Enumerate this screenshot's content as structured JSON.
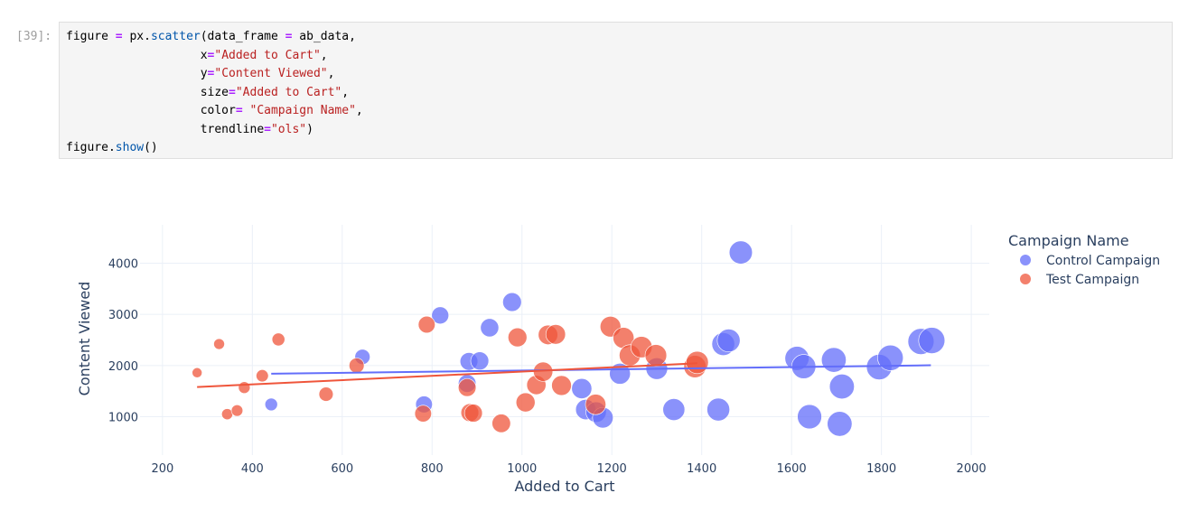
{
  "cell": {
    "prompt": "[39]:",
    "code_lines": [
      [
        [
          "t",
          "figure "
        ],
        [
          "kw",
          "="
        ],
        [
          "t",
          " px."
        ],
        [
          "fn",
          "scatter"
        ],
        [
          "t",
          "(data_frame "
        ],
        [
          "kw",
          "="
        ],
        [
          "t",
          " ab_data,"
        ]
      ],
      [
        [
          "t",
          "                   x"
        ],
        [
          "kw",
          "="
        ],
        [
          "str",
          "\"Added to Cart\""
        ],
        [
          "t",
          ","
        ]
      ],
      [
        [
          "t",
          "                   y"
        ],
        [
          "kw",
          "="
        ],
        [
          "str",
          "\"Content Viewed\""
        ],
        [
          "t",
          ","
        ]
      ],
      [
        [
          "t",
          "                   size"
        ],
        [
          "kw",
          "="
        ],
        [
          "str",
          "\"Added to Cart\""
        ],
        [
          "t",
          ","
        ]
      ],
      [
        [
          "t",
          "                   color"
        ],
        [
          "kw",
          "="
        ],
        [
          "t",
          " "
        ],
        [
          "str",
          "\"Campaign Name\""
        ],
        [
          "t",
          ","
        ]
      ],
      [
        [
          "t",
          "                   trendline"
        ],
        [
          "kw",
          "="
        ],
        [
          "str",
          "\"ols\""
        ],
        [
          "t",
          ")"
        ]
      ],
      [
        [
          "t",
          "figure."
        ],
        [
          "fn",
          "show"
        ],
        [
          "t",
          "()"
        ]
      ]
    ]
  },
  "chart_data": {
    "type": "scatter",
    "xlabel": "Added to Cart",
    "ylabel": "Content Viewed",
    "xlim": [
      150,
      2040
    ],
    "ylim": [
      250,
      4750
    ],
    "xticks": [
      200,
      400,
      600,
      800,
      1000,
      1200,
      1400,
      1600,
      1800,
      2000
    ],
    "yticks": [
      1000,
      2000,
      3000,
      4000
    ],
    "grid": true,
    "legend": {
      "title": "Campaign Name",
      "position": "top-right"
    },
    "series": [
      {
        "name": "Control Campaign",
        "color": "#636efa",
        "trendline": [
          [
            442,
            1840
          ],
          [
            1910,
            2005
          ]
        ],
        "points": [
          [
            442,
            1240
          ],
          [
            645,
            2170
          ],
          [
            782,
            1240
          ],
          [
            818,
            2980
          ],
          [
            878,
            1650
          ],
          [
            882,
            2080
          ],
          [
            906,
            2090
          ],
          [
            928,
            2740
          ],
          [
            978,
            3240
          ],
          [
            1133,
            1550
          ],
          [
            1142,
            1140
          ],
          [
            1165,
            1090
          ],
          [
            1180,
            980
          ],
          [
            1218,
            1840
          ],
          [
            1300,
            1940
          ],
          [
            1338,
            1140
          ],
          [
            1437,
            1140
          ],
          [
            1448,
            2420
          ],
          [
            1460,
            2490
          ],
          [
            1487,
            4210
          ],
          [
            1612,
            2140
          ],
          [
            1627,
            1980
          ],
          [
            1640,
            1000
          ],
          [
            1694,
            2110
          ],
          [
            1707,
            860
          ],
          [
            1712,
            1590
          ],
          [
            1795,
            1970
          ],
          [
            1820,
            2150
          ],
          [
            1888,
            2470
          ],
          [
            1912,
            2490
          ]
        ]
      },
      {
        "name": "Test Campaign",
        "color": "#ef553b",
        "trendline": [
          [
            277,
            1580
          ],
          [
            1390,
            2045
          ]
        ],
        "points": [
          [
            277,
            1860
          ],
          [
            326,
            2420
          ],
          [
            344,
            1050
          ],
          [
            366,
            1120
          ],
          [
            382,
            1570
          ],
          [
            422,
            1800
          ],
          [
            458,
            2510
          ],
          [
            564,
            1440
          ],
          [
            632,
            2000
          ],
          [
            780,
            1060
          ],
          [
            788,
            2800
          ],
          [
            878,
            1570
          ],
          [
            884,
            1080
          ],
          [
            892,
            1070
          ],
          [
            954,
            870
          ],
          [
            990,
            2550
          ],
          [
            1008,
            1280
          ],
          [
            1032,
            1620
          ],
          [
            1047,
            1880
          ],
          [
            1058,
            2600
          ],
          [
            1075,
            2610
          ],
          [
            1088,
            1610
          ],
          [
            1164,
            1240
          ],
          [
            1197,
            2760
          ],
          [
            1226,
            2540
          ],
          [
            1240,
            2200
          ],
          [
            1266,
            2360
          ],
          [
            1298,
            2200
          ],
          [
            1385,
            1980
          ],
          [
            1390,
            2060
          ]
        ]
      }
    ]
  }
}
